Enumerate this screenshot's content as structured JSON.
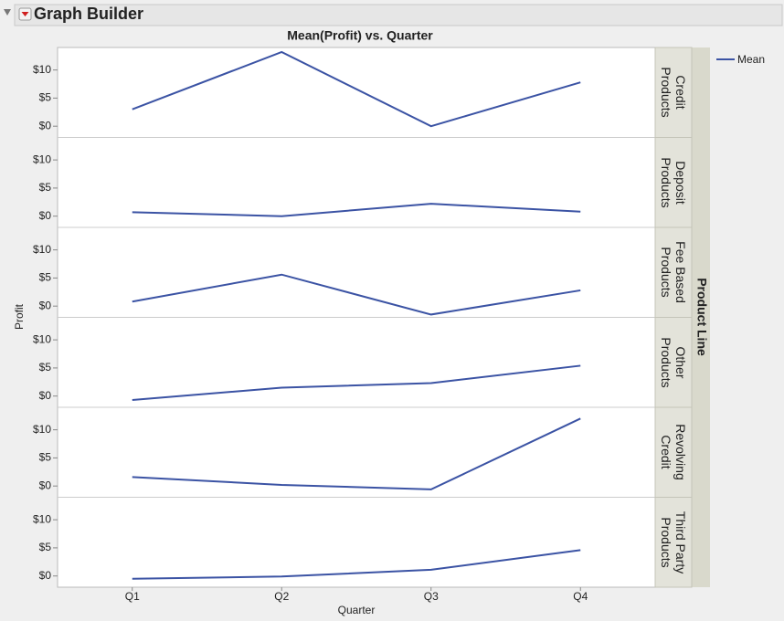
{
  "header": {
    "title": "Graph Builder"
  },
  "chart_data": {
    "type": "line",
    "title": "Mean(Profit) vs. Quarter",
    "x_label": "Quarter",
    "y_label": "Profit",
    "facet_label": "Product Line",
    "categories": [
      "Q1",
      "Q2",
      "Q3",
      "Q4"
    ],
    "legend": {
      "name": "Mean",
      "color": "#3b53a4"
    },
    "ylim": [
      -2,
      14
    ],
    "yticks": [
      {
        "value": 0,
        "label": "$0"
      },
      {
        "value": 5,
        "label": "$5"
      },
      {
        "value": 10,
        "label": "$10"
      }
    ],
    "panels": [
      {
        "label": "Credit Products",
        "values": [
          3,
          13.2,
          0,
          7.8
        ]
      },
      {
        "label": "Deposit Products",
        "values": [
          0.7,
          0,
          2.2,
          0.8
        ]
      },
      {
        "label": "Fee Based Products",
        "values": [
          0.8,
          5.6,
          -1.5,
          2.8
        ]
      },
      {
        "label": "Other Products",
        "values": [
          -0.7,
          1.5,
          2.3,
          5.4
        ]
      },
      {
        "label": "Revolving Credit",
        "values": [
          1.6,
          0.2,
          -0.6,
          12
        ]
      },
      {
        "label": "Third Party Products",
        "values": [
          -0.5,
          -0.1,
          1.1,
          4.6
        ]
      }
    ]
  }
}
